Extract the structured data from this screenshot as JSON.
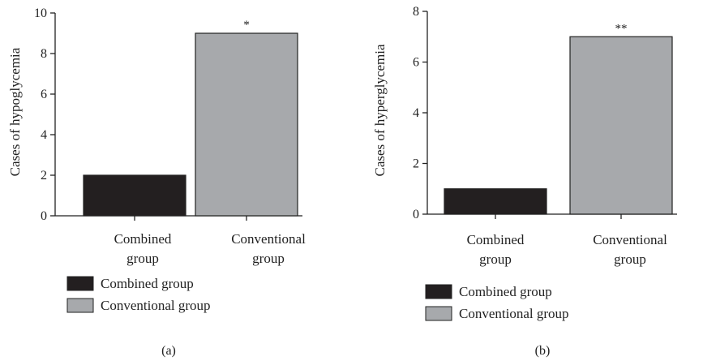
{
  "chart_data": [
    {
      "type": "bar",
      "panel_label": "(a)",
      "ylabel": "Cases of hypoglycemia",
      "categories": [
        [
          "Combined",
          "group"
        ],
        [
          "Conventional",
          "group"
        ]
      ],
      "values": [
        2,
        9
      ],
      "significance": [
        "",
        "*"
      ],
      "colors": [
        "#231f20",
        "#a7a9ac"
      ],
      "ylim": [
        0,
        10
      ],
      "yticks": [
        0,
        2,
        4,
        6,
        8,
        10
      ],
      "legend": [
        "Combined group",
        "Conventional group"
      ],
      "legend_position": "bottom-left",
      "grid": false
    },
    {
      "type": "bar",
      "panel_label": "(b)",
      "ylabel": "Cases of hyperglycemia",
      "categories": [
        [
          "Combined",
          "group"
        ],
        [
          "Conventional",
          "group"
        ]
      ],
      "values": [
        1,
        7
      ],
      "significance": [
        "",
        "**"
      ],
      "colors": [
        "#231f20",
        "#a7a9ac"
      ],
      "ylim": [
        0,
        8
      ],
      "yticks": [
        0,
        2,
        4,
        6,
        8
      ],
      "legend": [
        "Combined group",
        "Conventional group"
      ],
      "legend_position": "bottom-left",
      "grid": false
    }
  ]
}
